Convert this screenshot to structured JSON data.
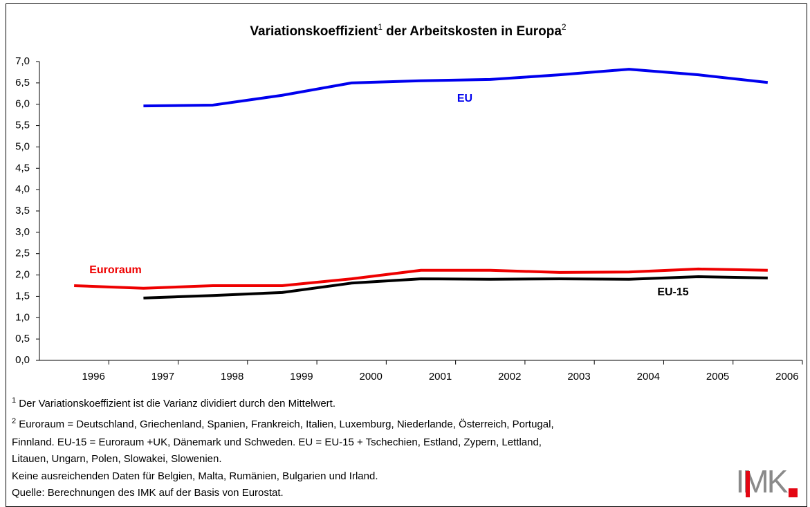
{
  "chart_data": {
    "type": "line",
    "title": [
      "Variationskoeffizient",
      "1",
      " der Arbeitskosten in Europa",
      "2"
    ],
    "categories": [
      "1996",
      "1997",
      "1998",
      "1999",
      "2000",
      "2001",
      "2002",
      "2003",
      "2004",
      "2005",
      "2006"
    ],
    "series": [
      {
        "name": "EU",
        "color": "#0000ee",
        "values": [
          null,
          5.96,
          5.98,
          6.21,
          6.5,
          6.55,
          6.58,
          6.69,
          6.82,
          6.69,
          6.51
        ]
      },
      {
        "name": "Euroraum",
        "color": "#ee0000",
        "values": [
          1.75,
          1.69,
          1.75,
          1.75,
          1.91,
          2.11,
          2.11,
          2.06,
          2.07,
          2.14,
          2.11
        ]
      },
      {
        "name": "EU-15",
        "color": "#000000",
        "values": [
          null,
          1.46,
          1.52,
          1.59,
          1.81,
          1.91,
          1.9,
          1.91,
          1.9,
          1.96,
          1.93
        ]
      }
    ],
    "ylim": [
      0,
      7
    ],
    "yticks": [
      {
        "value": 0,
        "label": "0,0"
      },
      {
        "value": 0.5,
        "label": "0,5"
      },
      {
        "value": 1,
        "label": "1,0"
      },
      {
        "value": 1.5,
        "label": "1,5"
      },
      {
        "value": 2,
        "label": "2,0"
      },
      {
        "value": 2.5,
        "label": "2,5"
      },
      {
        "value": 3,
        "label": "3,0"
      },
      {
        "value": 3.5,
        "label": "3,5"
      },
      {
        "value": 4,
        "label": "4,0"
      },
      {
        "value": 4.5,
        "label": "4,5"
      },
      {
        "value": 5,
        "label": "5,0"
      },
      {
        "value": 5.5,
        "label": "5,5"
      },
      {
        "value": 6,
        "label": "6,0"
      },
      {
        "value": 6.5,
        "label": "6,5"
      },
      {
        "value": 7,
        "label": "7,0"
      }
    ],
    "grid": false,
    "notes": [
      {
        "sup": "1",
        "text": " Der Variationskoeffizient ist die Varianz dividiert durch den Mittelwert."
      },
      {
        "sup": "2",
        "text": " Euroraum = Deutschland, Griechenland, Spanien, Frankreich, Italien, Luxemburg, Niederlande, Österreich, Portugal,"
      },
      {
        "text": "Finnland. EU-15 = Euroraum +UK, Dänemark und Schweden. EU = EU-15 + Tschechien, Estland, Zypern, Lettland,"
      },
      {
        "text": "Litauen, Ungarn, Polen, Slowakei, Slowenien."
      },
      {
        "text": "Keine ausreichenden Daten für Belgien, Malta, Rumänien, Bulgarien und Irland."
      },
      {
        "text": "Quelle: Berechnungen des IMK auf der Basis von Eurostat."
      }
    ],
    "logo": "IMK"
  }
}
